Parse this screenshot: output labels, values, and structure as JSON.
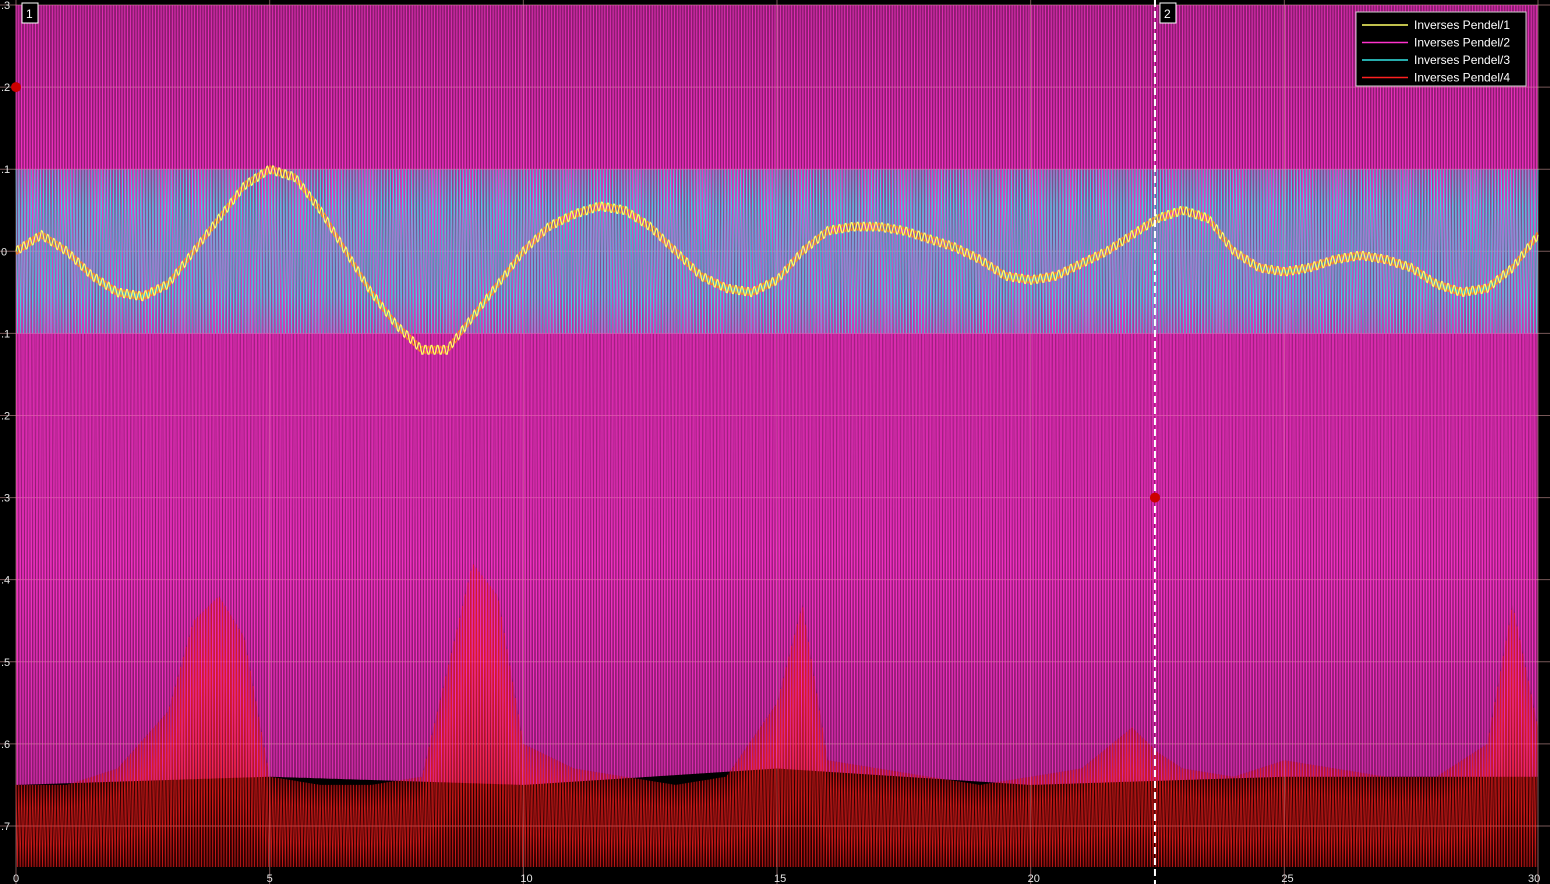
{
  "chart_data": {
    "type": "line",
    "title": "",
    "xlabel": "",
    "ylabel": "",
    "xlim": [
      0,
      30
    ],
    "ylim": [
      -0.75,
      0.3
    ],
    "x_ticks": [
      "0",
      "5",
      "10",
      "15",
      "20",
      "25",
      "30"
    ],
    "y_ticks": [
      ".3",
      ".2",
      ".1",
      "0",
      "-.1",
      "-.2",
      "-.3",
      "-.4",
      "-.5",
      "-.6",
      "-.7"
    ],
    "y_tick_values": [
      0.3,
      0.2,
      0.1,
      0,
      -0.1,
      -0.2,
      -0.3,
      -0.4,
      -0.5,
      -0.6,
      -0.7
    ],
    "grid": true,
    "legend_position": "top-right",
    "cursors": [
      {
        "label": "1",
        "x": 0.0,
        "y": 0.2
      },
      {
        "label": "2",
        "x": 22.45,
        "y": -0.3
      }
    ],
    "series": [
      {
        "name": "Inverses Pendel/1",
        "color": "#ffff66",
        "x": [
          0,
          0.5,
          1,
          1.5,
          2,
          2.5,
          3,
          3.5,
          4,
          4.5,
          5,
          5.5,
          6,
          6.5,
          7,
          7.5,
          8,
          8.5,
          9,
          9.5,
          10,
          10.5,
          11,
          11.5,
          12,
          12.5,
          13,
          13.5,
          14,
          14.5,
          15,
          15.5,
          16,
          16.5,
          17,
          17.5,
          18,
          18.5,
          19,
          19.5,
          20,
          20.5,
          21,
          21.5,
          22,
          22.5,
          23,
          23.5,
          24,
          24.5,
          25,
          25.5,
          26,
          26.5,
          27,
          27.5,
          28,
          28.5,
          29,
          29.5,
          30
        ],
        "y": [
          0.0,
          0.02,
          0.0,
          -0.03,
          -0.05,
          -0.055,
          -0.04,
          0.0,
          0.04,
          0.08,
          0.1,
          0.09,
          0.05,
          0.0,
          -0.05,
          -0.09,
          -0.12,
          -0.12,
          -0.08,
          -0.04,
          0.0,
          0.03,
          0.045,
          0.055,
          0.05,
          0.03,
          0.0,
          -0.03,
          -0.045,
          -0.05,
          -0.035,
          0.0,
          0.025,
          0.03,
          0.03,
          0.025,
          0.015,
          0.005,
          -0.01,
          -0.03,
          -0.035,
          -0.03,
          -0.015,
          0.0,
          0.02,
          0.04,
          0.05,
          0.04,
          0.0,
          -0.02,
          -0.025,
          -0.02,
          -0.01,
          -0.005,
          -0.01,
          -0.02,
          -0.04,
          -0.05,
          -0.045,
          -0.02,
          0.02
        ]
      },
      {
        "name": "Inverses Pendel/2",
        "color": "#ff33cc",
        "x": [
          0,
          5,
          10,
          15,
          20,
          25,
          30
        ],
        "y_upper": [
          0.3,
          0.3,
          0.3,
          0.3,
          0.3,
          0.3,
          0.3
        ],
        "y_lower": [
          -0.65,
          -0.64,
          -0.65,
          -0.63,
          -0.65,
          -0.64,
          -0.64
        ]
      },
      {
        "name": "Inverses Pendel/3",
        "color": "#33e6e6",
        "x": [
          0,
          5,
          10,
          15,
          20,
          25,
          30
        ],
        "y_upper": [
          0.1,
          0.1,
          0.1,
          0.1,
          0.1,
          0.1,
          0.1
        ],
        "y_lower": [
          -0.1,
          -0.1,
          -0.1,
          -0.1,
          -0.1,
          -0.1,
          -0.1
        ]
      },
      {
        "name": "Inverses Pendel/4",
        "color": "#ff2020",
        "x": [
          0,
          1,
          2,
          3,
          3.5,
          4,
          4.5,
          5,
          6,
          7,
          8,
          9,
          9.5,
          10,
          11,
          12,
          13,
          14,
          15,
          15.5,
          16,
          17,
          18,
          19,
          20,
          21,
          22,
          22.5,
          23,
          24,
          25,
          26,
          27,
          28,
          29,
          29.5,
          30
        ],
        "y_upper": [
          -0.65,
          -0.65,
          -0.63,
          -0.56,
          -0.45,
          -0.42,
          -0.47,
          -0.64,
          -0.65,
          -0.65,
          -0.64,
          -0.38,
          -0.42,
          -0.6,
          -0.63,
          -0.64,
          -0.65,
          -0.64,
          -0.55,
          -0.43,
          -0.62,
          -0.63,
          -0.64,
          -0.65,
          -0.64,
          -0.63,
          -0.58,
          -0.61,
          -0.63,
          -0.64,
          -0.62,
          -0.63,
          -0.64,
          -0.64,
          -0.6,
          -0.43,
          -0.58
        ],
        "y_lower": [
          -0.75,
          -0.75,
          -0.75,
          -0.75,
          -0.75,
          -0.75,
          -0.75,
          -0.75,
          -0.75,
          -0.75,
          -0.75,
          -0.75,
          -0.75,
          -0.75,
          -0.75,
          -0.75,
          -0.75,
          -0.75,
          -0.75,
          -0.75,
          -0.75,
          -0.75,
          -0.75,
          -0.75,
          -0.75,
          -0.75,
          -0.75,
          -0.75,
          -0.75,
          -0.75,
          -0.75,
          -0.75,
          -0.75,
          -0.75,
          -0.75,
          -0.75,
          -0.75
        ]
      }
    ]
  }
}
